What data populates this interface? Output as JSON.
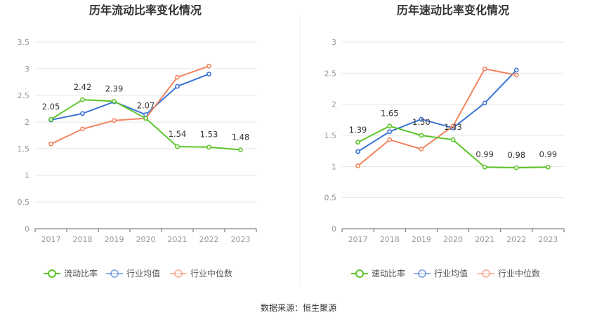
{
  "source": "数据来源：恒生聚源",
  "colors": {
    "green": "#5cc42b",
    "blue": "#3b73d6",
    "orange": "#f4845f",
    "grid": "#e6e6e6",
    "axis": "#666666"
  },
  "chart_data": [
    {
      "type": "line",
      "title": "历年流动比率变化情况",
      "categories": [
        "2017",
        "2018",
        "2019",
        "2020",
        "2021",
        "2022",
        "2023"
      ],
      "ylim": [
        0,
        3.5
      ],
      "yticks": [
        "0",
        "0.5",
        "1",
        "1.5",
        "2",
        "2.5",
        "3",
        "3.5"
      ],
      "grid": true,
      "legend_position": "bottom",
      "series": [
        {
          "name": "流动比率",
          "color_key": "green",
          "values": [
            2.05,
            2.42,
            2.39,
            2.07,
            1.54,
            1.53,
            1.48
          ],
          "labels": [
            "2.05",
            "2.42",
            "2.39",
            "2.07",
            "1.54",
            "1.53",
            "1.48"
          ]
        },
        {
          "name": "行业均值",
          "color_key": "blue",
          "values": [
            2.04,
            2.16,
            2.38,
            2.14,
            2.67,
            2.9,
            null
          ]
        },
        {
          "name": "行业中位数",
          "color_key": "orange",
          "values": [
            1.59,
            1.87,
            2.03,
            2.07,
            2.84,
            3.05,
            null
          ]
        }
      ]
    },
    {
      "type": "line",
      "title": "历年速动比率变化情况",
      "categories": [
        "2017",
        "2018",
        "2019",
        "2020",
        "2021",
        "2022",
        "2023"
      ],
      "ylim": [
        0,
        3
      ],
      "yticks": [
        "0",
        "0.5",
        "1",
        "1.5",
        "2",
        "2.5",
        "3"
      ],
      "grid": true,
      "legend_position": "bottom",
      "series": [
        {
          "name": "速动比率",
          "color_key": "green",
          "values": [
            1.39,
            1.65,
            1.5,
            1.43,
            0.99,
            0.98,
            0.99
          ],
          "labels": [
            "1.39",
            "1.65",
            "1.50",
            "1.43",
            "0.99",
            "0.98",
            "0.99"
          ]
        },
        {
          "name": "行业均值",
          "color_key": "blue",
          "values": [
            1.24,
            1.56,
            1.76,
            1.62,
            2.02,
            2.55,
            null
          ]
        },
        {
          "name": "行业中位数",
          "color_key": "orange",
          "values": [
            1.01,
            1.43,
            1.28,
            1.65,
            2.57,
            2.47,
            null
          ]
        }
      ]
    }
  ]
}
